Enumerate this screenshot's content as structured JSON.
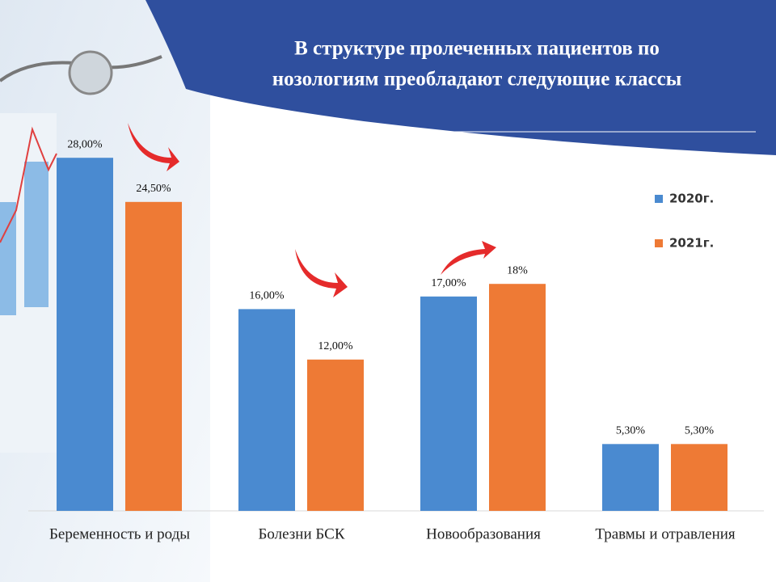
{
  "chart_data": {
    "type": "bar",
    "title": [
      "В структуре  пролеченных пациентов  по",
      "нозологиям  преобладают следующие классы"
    ],
    "categories": [
      "Беременность и роды",
      "Болезни БСК",
      "Новообразования",
      "Травмы и отравления"
    ],
    "series": [
      {
        "name": "2020г.",
        "color": "#4a8ad0",
        "values": [
          28,
          16,
          17,
          5.3
        ],
        "value_labels": [
          "28,00%",
          "16,00%",
          "17,00%",
          "5,30%"
        ]
      },
      {
        "name": "2021г.",
        "color": "#ee7a35",
        "values": [
          24.5,
          12,
          18,
          5.3
        ],
        "value_labels": [
          "24,50%",
          "12,00%",
          "18%",
          "5,30%"
        ]
      }
    ],
    "ylim": [
      0,
      30
    ]
  }
}
